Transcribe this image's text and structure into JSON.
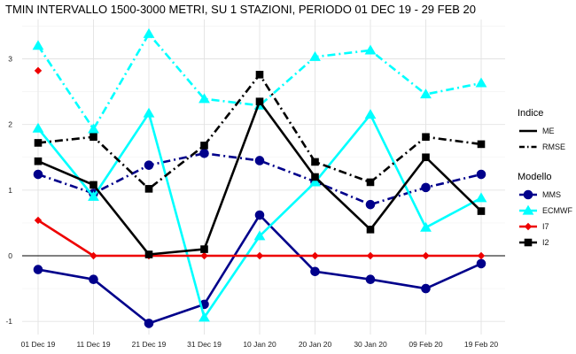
{
  "chart_data": {
    "type": "line",
    "title": "TMIN INTERVALLO 1500-3000 METRI, SU 1 STAZIONI, PERIODO 01 DEC 19  -  29 FEB 20",
    "xlabel": "",
    "ylabel": "",
    "categories": [
      "01 Dec 19",
      "11 Dec 19",
      "21 Dec 19",
      "31 Dec 19",
      "10 Jan 20",
      "20 Jan 20",
      "30 Jan 20",
      "09 Feb 20",
      "19 Feb 20"
    ],
    "ylim": [
      -1.2,
      3.6
    ],
    "yticks": [
      -1,
      0,
      1,
      2,
      3
    ],
    "grid": true,
    "legend_position": "right",
    "legend_indice_title": "Indice",
    "legend_modello_title": "Modello",
    "indici": [
      {
        "name": "ME",
        "dash": "solid"
      },
      {
        "name": "RMSE",
        "dash": "dotdash"
      }
    ],
    "modelli": [
      {
        "name": "MMS",
        "color": "#00008B",
        "marker": "circle"
      },
      {
        "name": "ECMWF",
        "color": "#00FFFF",
        "marker": "triangle"
      },
      {
        "name": "I7",
        "color": "#EE0000",
        "marker": "diamond"
      },
      {
        "name": "I2",
        "color": "#000000",
        "marker": "square"
      }
    ],
    "series": [
      {
        "model": "MMS",
        "index": "ME",
        "values": [
          -0.21,
          -0.36,
          -1.03,
          -0.74,
          0.62,
          -0.24,
          -0.36,
          -0.5,
          -0.12
        ]
      },
      {
        "model": "MMS",
        "index": "RMSE",
        "values": [
          1.24,
          0.95,
          1.38,
          1.56,
          1.45,
          1.13,
          0.78,
          1.04,
          1.24
        ]
      },
      {
        "model": "ECMWF",
        "index": "ME",
        "values": [
          1.94,
          0.9,
          2.17,
          -0.94,
          0.3,
          1.12,
          2.15,
          0.43,
          0.88
        ]
      },
      {
        "model": "ECMWF",
        "index": "RMSE",
        "values": [
          3.2,
          1.93,
          3.38,
          2.39,
          2.29,
          3.03,
          3.13,
          2.46,
          2.63
        ]
      },
      {
        "model": "I7",
        "index": "ME",
        "values": [
          0.54,
          0.0,
          0.0,
          0.0,
          0.0,
          0.0,
          0.0,
          0.0,
          0.0
        ]
      },
      {
        "model": "I7",
        "index": "RMSE",
        "values": [
          2.82,
          null,
          null,
          null,
          null,
          null,
          null,
          null,
          null
        ]
      },
      {
        "model": "I2",
        "index": "ME",
        "values": [
          1.44,
          1.08,
          0.02,
          0.1,
          2.35,
          1.2,
          0.4,
          1.5,
          0.68
        ]
      },
      {
        "model": "I2",
        "index": "RMSE",
        "values": [
          1.72,
          1.81,
          1.02,
          1.68,
          2.76,
          1.43,
          1.12,
          1.81,
          1.7
        ]
      }
    ]
  }
}
